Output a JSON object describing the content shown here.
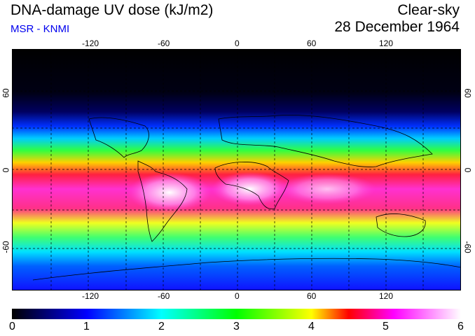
{
  "header": {
    "title": "DNA-damage UV dose (kJ/m2)",
    "subtitle": "MSR - KNMI",
    "sky": "Clear-sky",
    "date": "28 December 1964"
  },
  "map": {
    "lon_ticks": [
      "-120",
      "-60",
      "0",
      "60",
      "120"
    ],
    "lat_ticks": [
      "60",
      "0",
      "-60"
    ]
  },
  "colorbar": {
    "labels": [
      "0",
      "1",
      "2",
      "3",
      "4",
      "5",
      "6"
    ],
    "colors": [
      "#000000",
      "#0000ff",
      "#00ffff",
      "#00ff00",
      "#ffff00",
      "#ff0000",
      "#ff00ff",
      "#ffffff"
    ]
  }
}
